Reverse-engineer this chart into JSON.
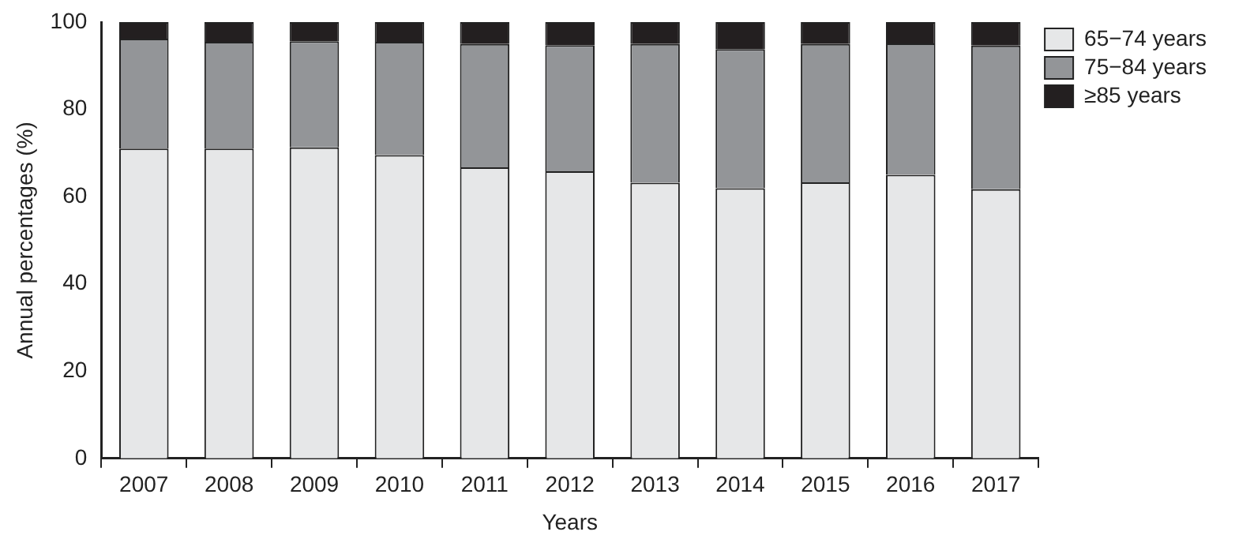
{
  "chart_data": {
    "type": "bar",
    "stacked": true,
    "xlabel": "Years",
    "ylabel": "Annual percentages (%)",
    "categories": [
      "2007",
      "2008",
      "2009",
      "2010",
      "2011",
      "2012",
      "2013",
      "2014",
      "2015",
      "2016",
      "2017"
    ],
    "series": [
      {
        "name": "65−74 years",
        "color": "#e6e7e8",
        "values": [
          71.0,
          71.0,
          71.3,
          69.5,
          66.7,
          65.8,
          63.2,
          61.9,
          63.3,
          65.0,
          61.7
        ]
      },
      {
        "name": "75−84 years",
        "color": "#939598",
        "values": [
          25.2,
          24.5,
          24.3,
          26.0,
          28.3,
          28.9,
          31.8,
          31.9,
          31.7,
          30.1,
          32.9
        ]
      },
      {
        "name": "≥85 years",
        "color": "#231f20",
        "values": [
          3.8,
          4.5,
          4.4,
          4.5,
          5.0,
          5.3,
          5.0,
          6.2,
          5.0,
          4.9,
          5.4
        ]
      }
    ],
    "ylim": [
      0,
      100
    ],
    "yticks": [
      0,
      20,
      40,
      60,
      80,
      100
    ],
    "grid": false,
    "legend": "top right"
  }
}
